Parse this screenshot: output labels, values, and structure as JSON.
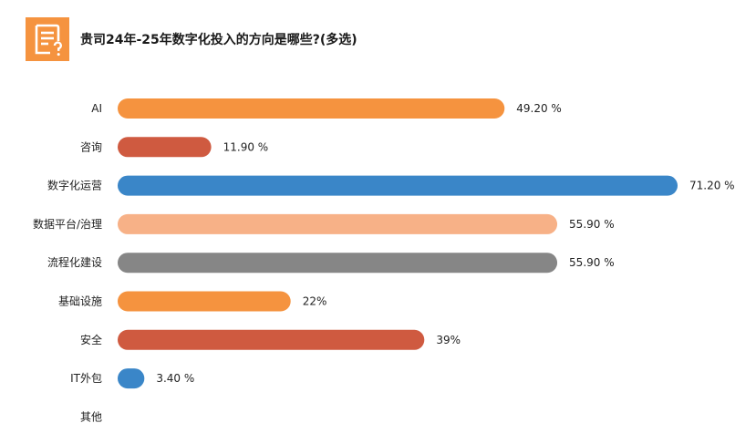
{
  "question": {
    "icon": "survey-question-icon",
    "title": "贵司24年-25年数字化投入的方向是哪些?(多选)"
  },
  "colors": {
    "orange": "#F5933F",
    "red": "#CF5A40",
    "blue": "#3A86C8",
    "peach": "#F7B187",
    "gray": "#868686",
    "icon_bg": "#F5933F"
  },
  "chart_data": {
    "type": "bar",
    "orientation": "horizontal",
    "title": "贵司24年-25年数字化投入的方向是哪些?(多选)",
    "xlim": [
      0,
      71.2
    ],
    "grid": false,
    "legend": "none",
    "categories": [
      "AI",
      "咨询",
      "数字化运营",
      "数据平台/治理",
      "流程化建设",
      "基础设施",
      "安全",
      "IT外包",
      "其他"
    ],
    "values": [
      49.2,
      11.9,
      71.2,
      55.9,
      55.9,
      22,
      39,
      3.4,
      null
    ],
    "value_labels": [
      "49.20 %",
      "11.90 %",
      "71.20 %",
      "55.90 %",
      "55.90 %",
      "22%",
      "39%",
      "3.40 %",
      ""
    ],
    "bar_colors": [
      "#F5933F",
      "#CF5A40",
      "#3A86C8",
      "#F7B187",
      "#868686",
      "#F5933F",
      "#CF5A40",
      "#3A86C8",
      "#F5933F"
    ]
  }
}
